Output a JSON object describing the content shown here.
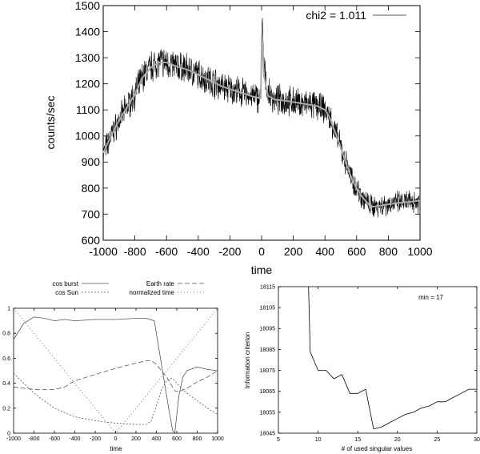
{
  "colors": {
    "data_trace": "#000000",
    "fit_line": "#aaaaaa",
    "axis": "#000000",
    "component_lines": "#555555"
  },
  "chart_data": [
    {
      "id": "main",
      "type": "line",
      "title": "",
      "xlabel": "time",
      "ylabel": "counts/sec",
      "xlim": [
        -1000,
        1000
      ],
      "ylim": [
        600,
        1500
      ],
      "xticks": [
        -1000,
        -800,
        -600,
        -400,
        -200,
        0,
        200,
        400,
        600,
        800,
        1000
      ],
      "yticks": [
        600,
        700,
        800,
        900,
        1000,
        1100,
        1200,
        1300,
        1400,
        1500
      ],
      "legend_position": "top-right",
      "grid": false,
      "series": [
        {
          "name": "",
          "style": "noisy-data",
          "x": [
            -1000,
            -950,
            -900,
            -850,
            -800,
            -750,
            -700,
            -650,
            -600,
            -550,
            -500,
            -450,
            -400,
            -350,
            -300,
            -250,
            -200,
            -150,
            -100,
            -50,
            -5,
            0,
            5,
            15,
            40,
            80,
            150,
            250,
            350,
            400,
            430,
            480,
            530,
            580,
            630,
            680,
            700,
            750,
            800,
            850,
            900,
            950,
            1000
          ],
          "y": [
            930,
            1000,
            1060,
            1110,
            1160,
            1230,
            1265,
            1285,
            1280,
            1270,
            1262,
            1250,
            1235,
            1220,
            1205,
            1190,
            1180,
            1170,
            1160,
            1150,
            1145,
            1380,
            1410,
            1260,
            1160,
            1140,
            1135,
            1125,
            1115,
            1100,
            1070,
            990,
            900,
            820,
            770,
            735,
            730,
            735,
            740,
            742,
            745,
            747,
            750
          ]
        },
        {
          "name": "chi2 = 1.011",
          "style": "fit",
          "x": [
            -1000,
            -950,
            -900,
            -850,
            -800,
            -750,
            -700,
            -650,
            -600,
            -550,
            -500,
            -450,
            -400,
            -350,
            -300,
            -250,
            -200,
            -150,
            -100,
            -50,
            -5,
            0,
            5,
            15,
            40,
            80,
            150,
            250,
            350,
            400,
            430,
            480,
            530,
            580,
            630,
            680,
            700,
            750,
            800,
            850,
            900,
            950,
            1000
          ],
          "y": [
            935,
            1000,
            1060,
            1110,
            1160,
            1225,
            1262,
            1282,
            1282,
            1270,
            1260,
            1250,
            1235,
            1220,
            1205,
            1190,
            1180,
            1170,
            1160,
            1150,
            1145,
            1330,
            1345,
            1230,
            1155,
            1140,
            1135,
            1125,
            1115,
            1100,
            1070,
            990,
            900,
            820,
            770,
            735,
            728,
            733,
            738,
            742,
            745,
            748,
            752
          ]
        }
      ]
    },
    {
      "id": "components",
      "type": "line",
      "title": "",
      "xlabel": "time",
      "ylabel": "",
      "xlim": [
        -1000,
        1000
      ],
      "ylim": [
        0,
        1
      ],
      "xticks": [
        -1000,
        -800,
        -600,
        -400,
        -200,
        0,
        200,
        400,
        600,
        800,
        1000
      ],
      "yticks": [
        0,
        0.2,
        0.4,
        0.6,
        0.8,
        1
      ],
      "ytick_labels": [
        "0",
        "0.2",
        "0.4",
        "0.6",
        "0.8",
        "1"
      ],
      "legend_position": "top",
      "grid": false,
      "series": [
        {
          "name": "cos burst",
          "dash": "",
          "x": [
            -1000,
            -900,
            -800,
            -700,
            -600,
            -500,
            -400,
            -200,
            0,
            200,
            300,
            380,
            420,
            480,
            520,
            560,
            580,
            620,
            660,
            700,
            800,
            900,
            1000
          ],
          "y": [
            0.75,
            0.88,
            0.93,
            0.92,
            0.9,
            0.91,
            0.9,
            0.91,
            0.91,
            0.92,
            0.92,
            0.9,
            0.7,
            0.4,
            0.2,
            0.02,
            0.0,
            0.3,
            0.45,
            0.5,
            0.53,
            0.51,
            0.5
          ]
        },
        {
          "name": "cos Sun",
          "dash": "2,2",
          "x": [
            -1000,
            -900,
            -800,
            -600,
            -400,
            -200,
            0,
            200,
            300,
            350,
            400,
            450,
            500,
            550,
            580,
            620,
            700,
            800,
            900,
            1000
          ],
          "y": [
            0.48,
            0.4,
            0.32,
            0.2,
            0.13,
            0.1,
            0.08,
            0.07,
            0.07,
            0.1,
            0.22,
            0.35,
            0.42,
            0.44,
            0.42,
            0.38,
            0.32,
            0.26,
            0.2,
            0.15
          ]
        },
        {
          "name": "Earth rate",
          "dash": "6,3",
          "x": [
            -1000,
            -800,
            -600,
            -500,
            -400,
            -200,
            0,
            200,
            300,
            350,
            400,
            450,
            500,
            550,
            580,
            620,
            700,
            800,
            900,
            1000
          ],
          "y": [
            0.37,
            0.35,
            0.35,
            0.37,
            0.42,
            0.47,
            0.52,
            0.56,
            0.58,
            0.58,
            0.55,
            0.5,
            0.45,
            0.38,
            0.34,
            0.33,
            0.36,
            0.41,
            0.45,
            0.5
          ]
        },
        {
          "name": "normalized time",
          "dash": "1,3",
          "x": [
            -1000,
            0,
            1000
          ],
          "y": [
            1,
            0,
            1
          ]
        }
      ]
    },
    {
      "id": "criterion",
      "type": "line",
      "title": "",
      "xlabel": "# of used singular values",
      "ylabel": "Information criterion",
      "xlim": [
        5,
        30
      ],
      "ylim": [
        18045,
        18115
      ],
      "xticks": [
        5,
        10,
        15,
        20,
        25,
        30
      ],
      "yticks": [
        18045,
        18055,
        18065,
        18075,
        18085,
        18095,
        18105,
        18115
      ],
      "legend_position": "",
      "annotation": "min = 17",
      "grid": false,
      "series": [
        {
          "name": "",
          "x": [
            8.8,
            9,
            10,
            11,
            12,
            13,
            14,
            15,
            16,
            17,
            18,
            19,
            20,
            21,
            22,
            23,
            24,
            25,
            26,
            27,
            28,
            29,
            30
          ],
          "y": [
            18115,
            18084,
            18075,
            18075,
            18071,
            18073,
            18064,
            18064,
            18066,
            18047,
            18048,
            18050,
            18052,
            18054,
            18055,
            18057,
            18058,
            18060,
            18060,
            18062,
            18064,
            18066,
            18066
          ]
        }
      ]
    }
  ]
}
